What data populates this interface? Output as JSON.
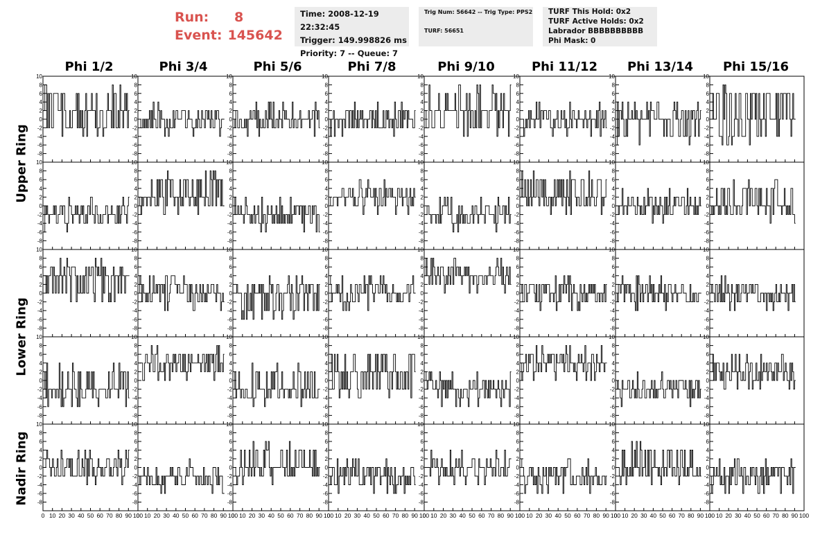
{
  "header": {
    "run_label": "Run:",
    "run_value": "8",
    "event_label": "Event:",
    "event_value": "145642"
  },
  "info_time": {
    "time": "Time: 2008-12-19 22:32:45",
    "trigger": "Trigger: 149.998826 ms",
    "priority": "Priority: 7 -- Queue: 7"
  },
  "info_trig": {
    "trig": "Trig Num: 56642 -- Trig Type: PPS2",
    "turf": "TURF: 56651"
  },
  "info_turf": {
    "hold": "TURF This Hold: 0x2",
    "active": "TURF Active Holds: 0x2",
    "labrador": "Labrador BBBBBBBBBB",
    "mask": "Phi Mask: 0"
  },
  "phi_headers": [
    "Phi 1/2",
    "Phi 3/4",
    "Phi 5/6",
    "Phi 7/8",
    "Phi 9/10",
    "Phi 11/12",
    "Phi 13/14",
    "Phi 15/16"
  ],
  "ring_labels": {
    "upper": "Upper Ring",
    "lower": "Lower Ring",
    "nadir": "Nadir Ring"
  },
  "chart_data": {
    "type": "line",
    "description_grid": "5 rows x 8 columns of waveform histograms",
    "xlim": [
      0,
      100
    ],
    "ylim": [
      -10,
      10
    ],
    "x_tick_labels": [
      "0",
      "10",
      "20",
      "30",
      "40",
      "50",
      "60",
      "70",
      "80",
      "90",
      "100"
    ],
    "y_tick_labels": [
      "-10",
      "-8",
      "-6",
      "-4",
      "-2",
      "0",
      "2",
      "4",
      "6",
      "8",
      "10"
    ],
    "n_samples": 90,
    "rows": [
      [
        {
          "base": 2,
          "hi": 6,
          "lo": -2
        },
        {
          "base": 0,
          "hi": 2,
          "lo": -2
        },
        {
          "base": 0,
          "hi": 2,
          "lo": -2
        },
        {
          "base": 0,
          "hi": 2,
          "lo": -2
        },
        {
          "base": 2,
          "hi": 6,
          "lo": -2
        },
        {
          "base": 0,
          "hi": 2,
          "lo": -2
        },
        {
          "base": 0,
          "hi": 2,
          "lo": -4
        },
        {
          "base": 0,
          "hi": 6,
          "lo": -4
        }
      ],
      [
        {
          "base": -2,
          "hi": 0,
          "lo": -4
        },
        {
          "base": 2,
          "hi": 6,
          "lo": 0
        },
        {
          "base": -2,
          "hi": 0,
          "lo": -4
        },
        {
          "base": 2,
          "hi": 4,
          "lo": 0
        },
        {
          "base": -2,
          "hi": 0,
          "lo": -4
        },
        {
          "base": 2,
          "hi": 6,
          "lo": 0
        },
        {
          "base": 0,
          "hi": 2,
          "lo": -2
        },
        {
          "base": 0,
          "hi": 4,
          "lo": -2
        }
      ],
      [
        {
          "base": 4,
          "hi": 6,
          "lo": 0
        },
        {
          "base": 0,
          "hi": 2,
          "lo": -2
        },
        {
          "base": 0,
          "hi": 2,
          "lo": -4
        },
        {
          "base": 0,
          "hi": 2,
          "lo": -2
        },
        {
          "base": 4,
          "hi": 6,
          "lo": 2
        },
        {
          "base": 0,
          "hi": 2,
          "lo": -2
        },
        {
          "base": 0,
          "hi": 2,
          "lo": -2
        },
        {
          "base": 0,
          "hi": 2,
          "lo": -2
        }
      ],
      [
        {
          "base": -2,
          "hi": 2,
          "lo": -4
        },
        {
          "base": 4,
          "hi": 6,
          "lo": 2
        },
        {
          "base": -2,
          "hi": 2,
          "lo": -4
        },
        {
          "base": 2,
          "hi": 6,
          "lo": -2
        },
        {
          "base": -2,
          "hi": 0,
          "lo": -4
        },
        {
          "base": 4,
          "hi": 6,
          "lo": 2
        },
        {
          "base": -2,
          "hi": 0,
          "lo": -4
        },
        {
          "base": 2,
          "hi": 4,
          "lo": 0
        }
      ],
      [
        {
          "base": 0,
          "hi": 2,
          "lo": -2
        },
        {
          "base": -2,
          "hi": 0,
          "lo": -4
        },
        {
          "base": 0,
          "hi": 4,
          "lo": -2
        },
        {
          "base": -2,
          "hi": 0,
          "lo": -4
        },
        {
          "base": 0,
          "hi": 2,
          "lo": -2
        },
        {
          "base": -2,
          "hi": 0,
          "lo": -4
        },
        {
          "base": 0,
          "hi": 4,
          "lo": -2
        },
        {
          "base": -2,
          "hi": 0,
          "lo": -4
        }
      ]
    ]
  }
}
